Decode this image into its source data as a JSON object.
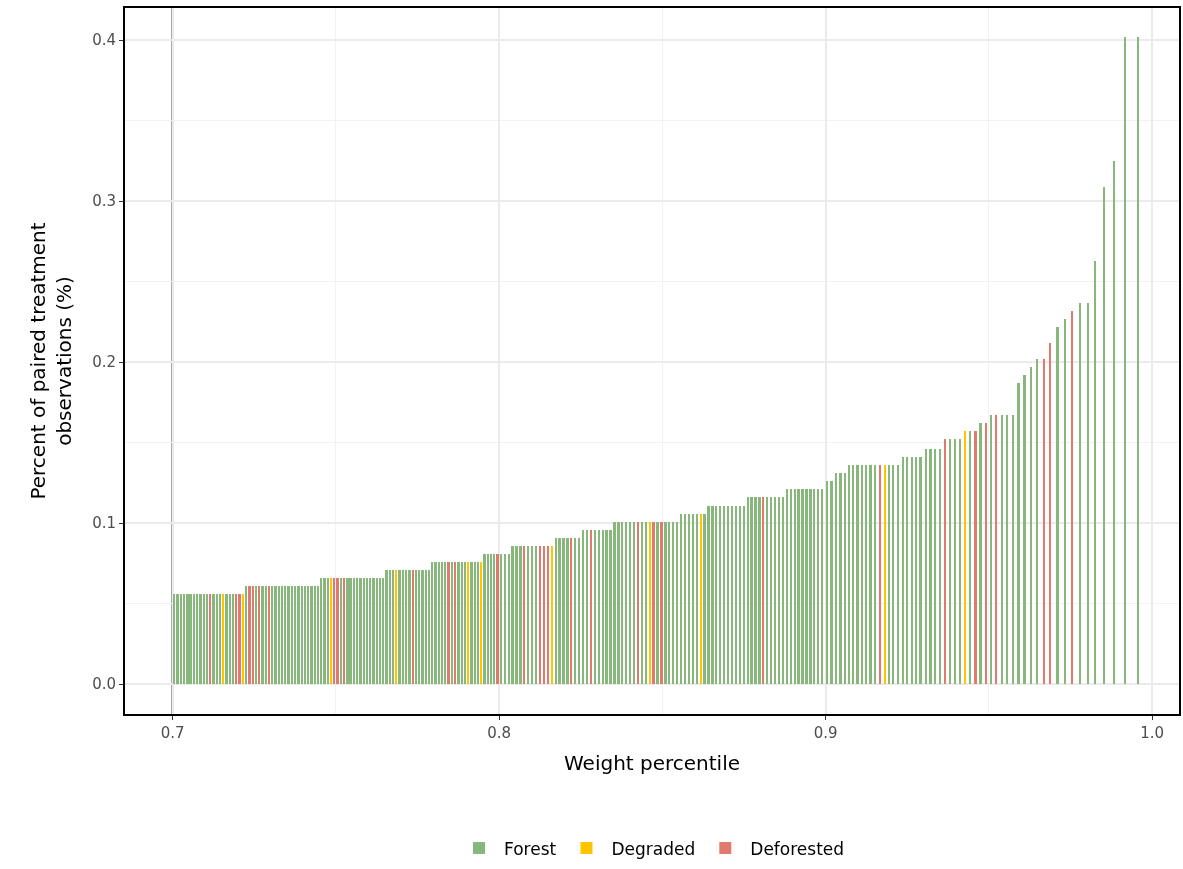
{
  "chart_data": {
    "type": "bar",
    "xlabel": "Weight percentile",
    "ylabel": "Percent of paired treatment\nobservations (%)",
    "xlim": [
      0.6854,
      1.0082
    ],
    "ylim": [
      -0.0185,
      0.42
    ],
    "xticks": [
      0.7,
      0.8,
      0.9,
      {
        "value": 1.0,
        "label": "1.0"
      }
    ],
    "yticks": [
      {
        "value": 0,
        "label": "0.0"
      },
      0.1,
      0.2,
      0.3,
      0.4
    ],
    "grid": true,
    "legend": "bottom",
    "ref_lines": [
      {
        "axis": "x",
        "value": 0.7,
        "color": "#000000"
      }
    ],
    "series": [
      {
        "name": "Forest",
        "color": "#88b77b",
        "x": [
          0.7005,
          0.7015,
          0.7025,
          0.7035,
          0.7045,
          0.7055,
          0.7065,
          0.7075,
          0.7085,
          0.7095,
          0.7105,
          0.7125,
          0.7135,
          0.7145,
          0.7165,
          0.7175,
          0.7185,
          0.7225,
          0.7255,
          0.7275,
          0.7285,
          0.7305,
          0.7315,
          0.7325,
          0.7335,
          0.7345,
          0.7355,
          0.7365,
          0.7375,
          0.7385,
          0.7395,
          0.7405,
          0.7415,
          0.7425,
          0.7435,
          0.7445,
          0.7455,
          0.7465,
          0.7475,
          0.7515,
          0.7535,
          0.7545,
          0.7555,
          0.7565,
          0.7575,
          0.7585,
          0.7595,
          0.7605,
          0.7615,
          0.7625,
          0.7635,
          0.7645,
          0.7655,
          0.7665,
          0.7675,
          0.7695,
          0.7705,
          0.7715,
          0.7725,
          0.7745,
          0.7755,
          0.7765,
          0.7775,
          0.7785,
          0.7795,
          0.7805,
          0.7815,
          0.7825,
          0.7835,
          0.7855,
          0.7875,
          0.7885,
          0.7895,
          0.7915,
          0.7925,
          0.7935,
          0.7955,
          0.7965,
          0.7975,
          0.7985,
          0.8005,
          0.8017,
          0.8029,
          0.8041,
          0.8053,
          0.8065,
          0.8089,
          0.8101,
          0.8113,
          0.8173,
          0.8185,
          0.8197,
          0.8209,
          0.8233,
          0.8245,
          0.8257,
          0.8269,
          0.8293,
          0.8305,
          0.8317,
          0.8329,
          0.8341,
          0.8353,
          0.8365,
          0.8377,
          0.8389,
          0.8401,
          0.8413,
          0.8437,
          0.8449,
          0.8485,
          0.8509,
          0.8521,
          0.8533,
          0.8545,
          0.8557,
          0.8569,
          0.8581,
          0.8593,
          0.8605,
          0.8629,
          0.8641,
          0.8653,
          0.8665,
          0.8677,
          0.8689,
          0.8701,
          0.8713,
          0.8725,
          0.8737,
          0.8749,
          0.8761,
          0.8773,
          0.8785,
          0.8797,
          0.8821,
          0.8833,
          0.8845,
          0.8857,
          0.8869,
          0.8881,
          0.8893,
          0.8905,
          0.8917,
          0.8929,
          0.8941,
          0.8953,
          0.8965,
          0.8977,
          0.8989,
          0.9005,
          0.9018,
          0.9032,
          0.9045,
          0.9058,
          0.9071,
          0.9084,
          0.9097,
          0.9111,
          0.9124,
          0.9137,
          0.915,
          0.9194,
          0.9207,
          0.9221,
          0.9237,
          0.925,
          0.9264,
          0.9277,
          0.929,
          0.9307,
          0.9321,
          0.9334,
          0.935,
          0.938,
          0.9396,
          0.9411,
          0.9442,
          0.9474,
          0.9506,
          0.9539,
          0.9556,
          0.9573,
          0.959,
          0.9609,
          0.9628,
          0.9648,
          0.971,
          0.9732,
          0.9779,
          0.9803,
          0.9825,
          0.9852,
          0.9883,
          0.9917,
          0.9957
        ],
        "values": [
          0.056,
          0.056,
          0.056,
          0.056,
          0.056,
          0.056,
          0.056,
          0.056,
          0.056,
          0.056,
          0.056,
          0.056,
          0.056,
          0.056,
          0.056,
          0.056,
          0.056,
          0.061,
          0.061,
          0.061,
          0.061,
          0.061,
          0.061,
          0.061,
          0.061,
          0.061,
          0.061,
          0.061,
          0.061,
          0.061,
          0.061,
          0.061,
          0.061,
          0.061,
          0.061,
          0.061,
          0.066,
          0.066,
          0.066,
          0.066,
          0.066,
          0.066,
          0.066,
          0.066,
          0.066,
          0.066,
          0.066,
          0.066,
          0.066,
          0.066,
          0.066,
          0.066,
          0.071,
          0.071,
          0.071,
          0.071,
          0.071,
          0.071,
          0.071,
          0.071,
          0.071,
          0.071,
          0.071,
          0.071,
          0.076,
          0.076,
          0.076,
          0.076,
          0.076,
          0.076,
          0.076,
          0.076,
          0.076,
          0.076,
          0.076,
          0.076,
          0.081,
          0.081,
          0.081,
          0.081,
          0.081,
          0.081,
          0.081,
          0.086,
          0.086,
          0.086,
          0.086,
          0.086,
          0.086,
          0.091,
          0.091,
          0.091,
          0.091,
          0.091,
          0.091,
          0.096,
          0.096,
          0.096,
          0.096,
          0.096,
          0.096,
          0.096,
          0.101,
          0.101,
          0.101,
          0.101,
          0.101,
          0.101,
          0.101,
          0.101,
          0.101,
          0.101,
          0.101,
          0.101,
          0.101,
          0.106,
          0.106,
          0.106,
          0.106,
          0.106,
          0.106,
          0.111,
          0.111,
          0.111,
          0.111,
          0.111,
          0.111,
          0.111,
          0.111,
          0.111,
          0.111,
          0.116,
          0.116,
          0.116,
          0.116,
          0.116,
          0.116,
          0.116,
          0.116,
          0.116,
          0.121,
          0.121,
          0.121,
          0.121,
          0.121,
          0.121,
          0.121,
          0.121,
          0.121,
          0.121,
          0.126,
          0.126,
          0.131,
          0.131,
          0.131,
          0.136,
          0.136,
          0.136,
          0.136,
          0.136,
          0.136,
          0.136,
          0.136,
          0.136,
          0.136,
          0.141,
          0.141,
          0.141,
          0.141,
          0.141,
          0.146,
          0.146,
          0.146,
          0.146,
          0.152,
          0.152,
          0.152,
          0.157,
          0.162,
          0.167,
          0.167,
          0.167,
          0.167,
          0.187,
          0.192,
          0.197,
          0.202,
          0.222,
          0.227,
          0.237,
          0.237,
          0.263,
          0.309,
          0.325,
          0.402,
          0.402
        ]
      },
      {
        "name": "Degraded",
        "color": "#ffc300",
        "x": [
          0.7155,
          0.7215,
          0.7485,
          0.7685,
          0.7905,
          0.7945,
          0.8161,
          0.8461,
          0.8617,
          0.9181,
          0.9427
        ],
        "values": [
          0.056,
          0.056,
          0.066,
          0.071,
          0.076,
          0.076,
          0.086,
          0.101,
          0.106,
          0.136,
          0.157
        ]
      },
      {
        "name": "Deforested",
        "color": "#e07a6f",
        "x": [
          0.7115,
          0.7195,
          0.7205,
          0.7235,
          0.7245,
          0.7265,
          0.7295,
          0.7495,
          0.7505,
          0.7525,
          0.7735,
          0.7845,
          0.7865,
          0.7995,
          0.8077,
          0.8125,
          0.8137,
          0.8149,
          0.8221,
          0.8281,
          0.8425,
          0.8473,
          0.8497,
          0.8809,
          0.9166,
          0.9365,
          0.9459,
          0.9491,
          0.9521,
          0.9669,
          0.9688,
          0.9755
        ],
        "values": [
          0.056,
          0.056,
          0.056,
          0.061,
          0.061,
          0.061,
          0.061,
          0.066,
          0.066,
          0.066,
          0.071,
          0.076,
          0.076,
          0.081,
          0.086,
          0.086,
          0.086,
          0.086,
          0.091,
          0.096,
          0.101,
          0.101,
          0.101,
          0.116,
          0.136,
          0.152,
          0.157,
          0.162,
          0.167,
          0.202,
          0.212,
          0.232
        ]
      }
    ]
  }
}
